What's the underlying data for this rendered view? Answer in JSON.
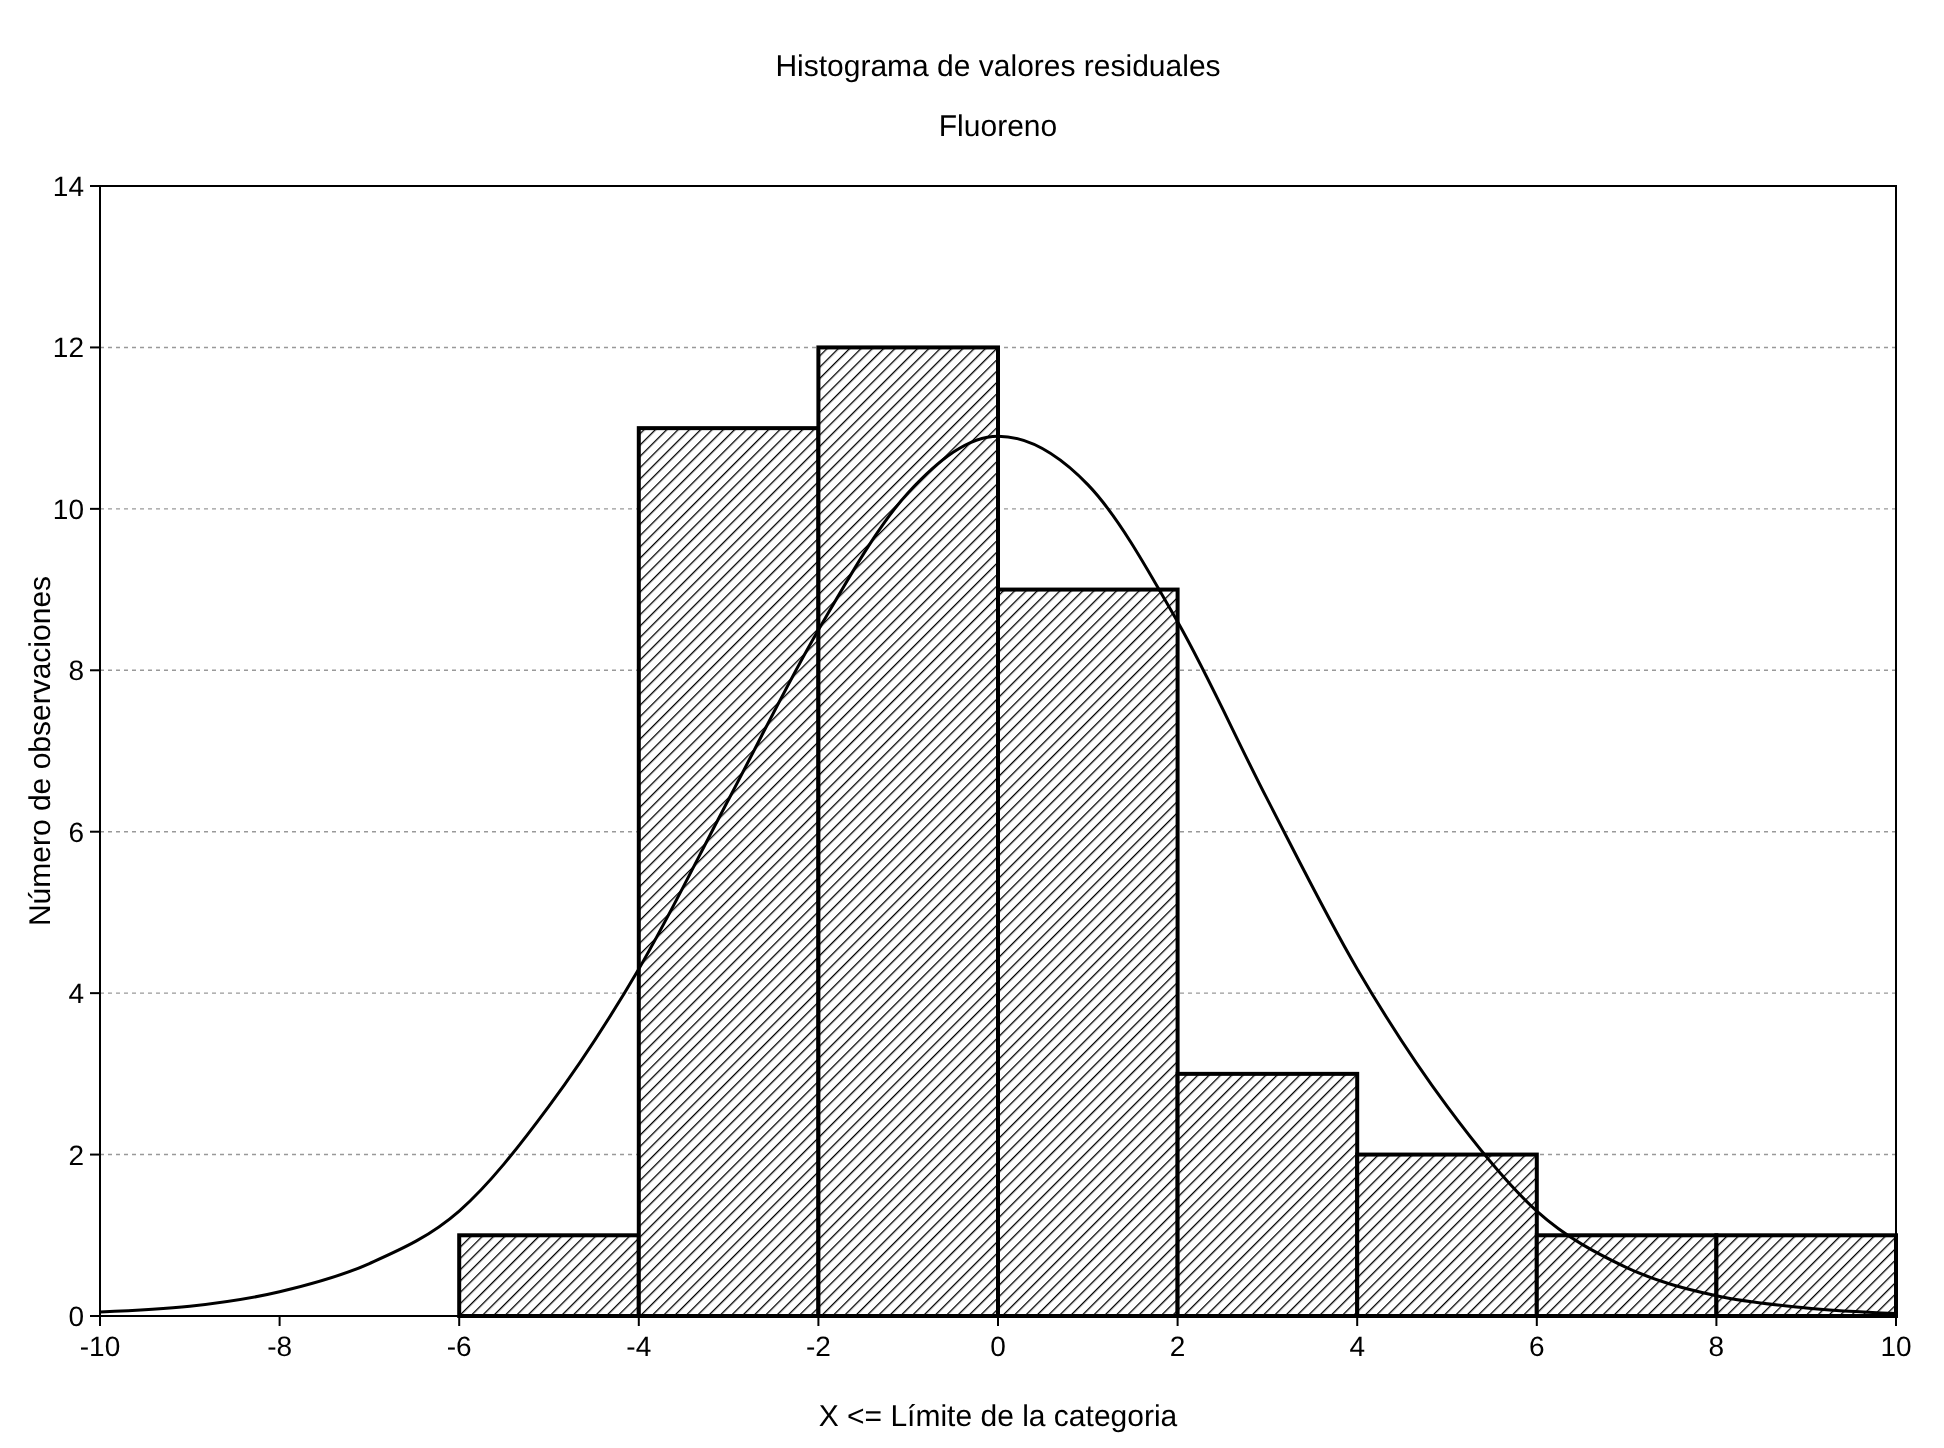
{
  "chart_data": {
    "type": "histogram",
    "title": "Histograma de valores residuales",
    "subtitle": "Fluoreno",
    "xlabel": "X <= Límite de la categoria",
    "ylabel": "Número de observaciones",
    "series": [
      {
        "color": "#000000",
        "bins": [
          -6,
          -4,
          -2,
          0,
          2,
          4,
          6,
          8,
          10
        ],
        "values": [
          1,
          11,
          12,
          9,
          3,
          2,
          1,
          1
        ]
      },
      {
        "type": "line",
        "color": "#000000",
        "x": [
          -10,
          -9,
          -8,
          -7,
          -6,
          -5,
          -4,
          -3,
          -2,
          -1,
          0,
          1,
          2,
          3,
          4,
          5,
          6,
          7,
          8,
          9,
          10
        ],
        "values": [
          0.05,
          0.12,
          0.3,
          0.65,
          1.3,
          2.6,
          4.3,
          6.4,
          8.5,
          10.2,
          10.9,
          10.3,
          8.6,
          6.4,
          4.3,
          2.6,
          1.3,
          0.6,
          0.25,
          0.1,
          0.03
        ]
      }
    ],
    "xlim": [
      -10,
      10
    ],
    "xticks": [
      -10,
      -8,
      -6,
      -4,
      -2,
      0,
      2,
      4,
      6,
      8,
      10
    ],
    "ylim": [
      0,
      14
    ],
    "yticks": [
      0,
      2,
      4,
      6,
      8,
      10,
      12,
      14
    ],
    "grid": "y"
  }
}
